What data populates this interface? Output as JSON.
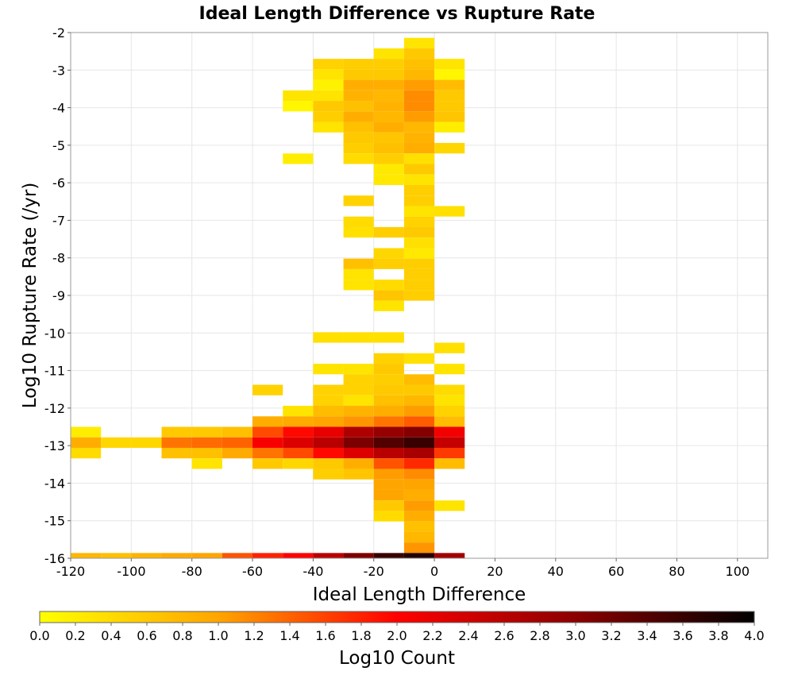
{
  "chart_data": {
    "type": "heatmap",
    "title": "Ideal Length Difference vs Rupture Rate",
    "xlabel": "Ideal Length Difference",
    "ylabel": "Log10 Rupture Rate (/yr)",
    "colorbar_label": "Log10 Count",
    "xlim": [
      -120,
      110
    ],
    "ylim": [
      -16,
      -2
    ],
    "x_ticks": [
      "-120",
      "-100",
      "-80",
      "-60",
      "-40",
      "-20",
      "0",
      "20",
      "40",
      "60",
      "80",
      "100"
    ],
    "y_ticks": [
      "-2",
      "-3",
      "-4",
      "-5",
      "-6",
      "-7",
      "-8",
      "-9",
      "-10",
      "-11",
      "-12",
      "-13",
      "-14",
      "-15",
      "-16"
    ],
    "colorbar_ticks": [
      "0.0",
      "0.2",
      "0.4",
      "0.6",
      "0.8",
      "1.0",
      "1.2",
      "1.4",
      "1.6",
      "1.8",
      "2.0",
      "2.2",
      "2.4",
      "2.6",
      "2.8",
      "3.0",
      "3.2",
      "3.4",
      "3.6",
      "3.8",
      "4.0"
    ],
    "color_range": [
      0,
      4
    ],
    "colormap": [
      "#ffff00",
      "#ffa500",
      "#ff0000",
      "#8b0000",
      "#000000"
    ],
    "bin_width_x": 10,
    "bin_height_y": 0.28,
    "grid": true,
    "cells": [
      {
        "x": -10,
        "y": -2.28,
        "v": 0.3
      },
      {
        "x": -20,
        "y": -2.56,
        "v": 0.3
      },
      {
        "x": -10,
        "y": -2.56,
        "v": 0.6
      },
      {
        "x": -40,
        "y": -2.84,
        "v": 0.5
      },
      {
        "x": -30,
        "y": -2.84,
        "v": 0.55
      },
      {
        "x": -20,
        "y": -2.84,
        "v": 0.55
      },
      {
        "x": -10,
        "y": -2.84,
        "v": 0.7
      },
      {
        "x": 0,
        "y": -2.84,
        "v": 0.3
      },
      {
        "x": -40,
        "y": -3.12,
        "v": 0.3
      },
      {
        "x": -30,
        "y": -3.12,
        "v": 0.6
      },
      {
        "x": -20,
        "y": -3.12,
        "v": 0.6
      },
      {
        "x": -10,
        "y": -3.12,
        "v": 0.8
      },
      {
        "x": 0,
        "y": -3.12,
        "v": 0.1
      },
      {
        "x": -40,
        "y": -3.4,
        "v": 0.15
      },
      {
        "x": -30,
        "y": -3.4,
        "v": 0.9
      },
      {
        "x": -20,
        "y": -3.4,
        "v": 0.9
      },
      {
        "x": -10,
        "y": -3.4,
        "v": 1.05
      },
      {
        "x": 0,
        "y": -3.4,
        "v": 0.75
      },
      {
        "x": -50,
        "y": -3.68,
        "v": 0.3
      },
      {
        "x": -40,
        "y": -3.68,
        "v": 0.3
      },
      {
        "x": -30,
        "y": -3.68,
        "v": 0.85
      },
      {
        "x": -20,
        "y": -3.68,
        "v": 0.8
      },
      {
        "x": -10,
        "y": -3.68,
        "v": 1.15
      },
      {
        "x": 0,
        "y": -3.68,
        "v": 0.6
      },
      {
        "x": -50,
        "y": -3.96,
        "v": 0.1
      },
      {
        "x": -40,
        "y": -3.96,
        "v": 0.6
      },
      {
        "x": -30,
        "y": -3.96,
        "v": 0.7
      },
      {
        "x": -20,
        "y": -3.96,
        "v": 0.85
      },
      {
        "x": -10,
        "y": -3.96,
        "v": 1.15
      },
      {
        "x": 0,
        "y": -3.96,
        "v": 0.6
      },
      {
        "x": -40,
        "y": -4.24,
        "v": 0.55
      },
      {
        "x": -30,
        "y": -4.24,
        "v": 0.9
      },
      {
        "x": -20,
        "y": -4.24,
        "v": 0.8
      },
      {
        "x": -10,
        "y": -4.24,
        "v": 1.05
      },
      {
        "x": 0,
        "y": -4.24,
        "v": 0.65
      },
      {
        "x": -40,
        "y": -4.52,
        "v": 0.3
      },
      {
        "x": -30,
        "y": -4.52,
        "v": 0.7
      },
      {
        "x": -20,
        "y": -4.52,
        "v": 0.9
      },
      {
        "x": -10,
        "y": -4.52,
        "v": 0.8
      },
      {
        "x": 0,
        "y": -4.52,
        "v": 0.2
      },
      {
        "x": -30,
        "y": -4.8,
        "v": 0.6
      },
      {
        "x": -20,
        "y": -4.8,
        "v": 0.65
      },
      {
        "x": -10,
        "y": -4.8,
        "v": 0.85
      },
      {
        "x": -30,
        "y": -5.08,
        "v": 0.55
      },
      {
        "x": -20,
        "y": -5.08,
        "v": 0.7
      },
      {
        "x": -10,
        "y": -5.08,
        "v": 0.9
      },
      {
        "x": 0,
        "y": -5.08,
        "v": 0.45
      },
      {
        "x": -50,
        "y": -5.36,
        "v": 0.2
      },
      {
        "x": -30,
        "y": -5.36,
        "v": 0.4
      },
      {
        "x": -20,
        "y": -5.36,
        "v": 0.55
      },
      {
        "x": -10,
        "y": -5.36,
        "v": 0.35
      },
      {
        "x": -20,
        "y": -5.64,
        "v": 0.25
      },
      {
        "x": -10,
        "y": -5.64,
        "v": 0.6
      },
      {
        "x": -20,
        "y": -5.92,
        "v": 0.25
      },
      {
        "x": -10,
        "y": -5.92,
        "v": 0.3
      },
      {
        "x": -10,
        "y": -6.2,
        "v": 0.55
      },
      {
        "x": -30,
        "y": -6.48,
        "v": 0.5
      },
      {
        "x": -10,
        "y": -6.48,
        "v": 0.55
      },
      {
        "x": -10,
        "y": -6.76,
        "v": 0.3
      },
      {
        "x": 0,
        "y": -6.76,
        "v": 0.35
      },
      {
        "x": -30,
        "y": -7.04,
        "v": 0.4
      },
      {
        "x": -10,
        "y": -7.04,
        "v": 0.5
      },
      {
        "x": -30,
        "y": -7.32,
        "v": 0.35
      },
      {
        "x": -20,
        "y": -7.32,
        "v": 0.55
      },
      {
        "x": -10,
        "y": -7.32,
        "v": 0.6
      },
      {
        "x": -10,
        "y": -7.6,
        "v": 0.35
      },
      {
        "x": -20,
        "y": -7.88,
        "v": 0.45
      },
      {
        "x": -10,
        "y": -7.88,
        "v": 0.25
      },
      {
        "x": -30,
        "y": -8.16,
        "v": 0.7
      },
      {
        "x": -20,
        "y": -8.16,
        "v": 0.55
      },
      {
        "x": -10,
        "y": -8.16,
        "v": 0.55
      },
      {
        "x": -30,
        "y": -8.44,
        "v": 0.3
      },
      {
        "x": -10,
        "y": -8.44,
        "v": 0.55
      },
      {
        "x": -30,
        "y": -8.72,
        "v": 0.3
      },
      {
        "x": -20,
        "y": -8.72,
        "v": 0.4
      },
      {
        "x": -10,
        "y": -8.72,
        "v": 0.55
      },
      {
        "x": -20,
        "y": -9.0,
        "v": 0.65
      },
      {
        "x": -10,
        "y": -9.0,
        "v": 0.55
      },
      {
        "x": -20,
        "y": -9.28,
        "v": 0.3
      },
      {
        "x": -40,
        "y": -10.12,
        "v": 0.35
      },
      {
        "x": -30,
        "y": -10.12,
        "v": 0.35
      },
      {
        "x": -20,
        "y": -10.12,
        "v": 0.35
      },
      {
        "x": 0,
        "y": -10.4,
        "v": 0.35
      },
      {
        "x": -20,
        "y": -10.68,
        "v": 0.5
      },
      {
        "x": -10,
        "y": -10.68,
        "v": 0.35
      },
      {
        "x": -40,
        "y": -10.96,
        "v": 0.3
      },
      {
        "x": -30,
        "y": -10.96,
        "v": 0.3
      },
      {
        "x": -20,
        "y": -10.96,
        "v": 0.6
      },
      {
        "x": 0,
        "y": -10.96,
        "v": 0.3
      },
      {
        "x": -30,
        "y": -11.24,
        "v": 0.5
      },
      {
        "x": -20,
        "y": -11.24,
        "v": 0.55
      },
      {
        "x": -10,
        "y": -11.24,
        "v": 0.75
      },
      {
        "x": -60,
        "y": -11.52,
        "v": 0.5
      },
      {
        "x": -40,
        "y": -11.52,
        "v": 0.5
      },
      {
        "x": -30,
        "y": -11.52,
        "v": 0.5
      },
      {
        "x": -20,
        "y": -11.52,
        "v": 0.6
      },
      {
        "x": -10,
        "y": -11.52,
        "v": 0.6
      },
      {
        "x": 0,
        "y": -11.52,
        "v": 0.4
      },
      {
        "x": -40,
        "y": -11.8,
        "v": 0.5
      },
      {
        "x": -30,
        "y": -11.8,
        "v": 0.3
      },
      {
        "x": -20,
        "y": -11.8,
        "v": 0.7
      },
      {
        "x": -10,
        "y": -11.8,
        "v": 0.8
      },
      {
        "x": 0,
        "y": -11.8,
        "v": 0.3
      },
      {
        "x": -50,
        "y": -12.08,
        "v": 0.3
      },
      {
        "x": -40,
        "y": -12.08,
        "v": 0.75
      },
      {
        "x": -30,
        "y": -12.08,
        "v": 0.85
      },
      {
        "x": -20,
        "y": -12.08,
        "v": 0.9
      },
      {
        "x": -10,
        "y": -12.08,
        "v": 1.05
      },
      {
        "x": 0,
        "y": -12.08,
        "v": 0.5
      },
      {
        "x": -60,
        "y": -12.36,
        "v": 0.9
      },
      {
        "x": -50,
        "y": -12.36,
        "v": 0.95
      },
      {
        "x": -40,
        "y": -12.36,
        "v": 1.0
      },
      {
        "x": -30,
        "y": -12.36,
        "v": 1.1
      },
      {
        "x": -20,
        "y": -12.36,
        "v": 1.3
      },
      {
        "x": -10,
        "y": -12.36,
        "v": 1.45
      },
      {
        "x": 0,
        "y": -12.36,
        "v": 0.75
      },
      {
        "x": -120,
        "y": -12.64,
        "v": 0.2
      },
      {
        "x": -90,
        "y": -12.64,
        "v": 0.6
      },
      {
        "x": -80,
        "y": -12.64,
        "v": 0.6
      },
      {
        "x": -70,
        "y": -12.64,
        "v": 0.7
      },
      {
        "x": -60,
        "y": -12.64,
        "v": 1.55
      },
      {
        "x": -50,
        "y": -12.64,
        "v": 1.95
      },
      {
        "x": -40,
        "y": -12.64,
        "v": 2.2
      },
      {
        "x": -30,
        "y": -12.64,
        "v": 2.7
      },
      {
        "x": -20,
        "y": -12.64,
        "v": 2.9
      },
      {
        "x": -10,
        "y": -12.64,
        "v": 3.05
      },
      {
        "x": 0,
        "y": -12.64,
        "v": 2.1
      },
      {
        "x": -120,
        "y": -12.92,
        "v": 0.9
      },
      {
        "x": -110,
        "y": -12.92,
        "v": 0.45
      },
      {
        "x": -100,
        "y": -12.92,
        "v": 0.45
      },
      {
        "x": -90,
        "y": -12.92,
        "v": 1.3
      },
      {
        "x": -80,
        "y": -12.92,
        "v": 1.35
      },
      {
        "x": -70,
        "y": -12.92,
        "v": 1.4
      },
      {
        "x": -60,
        "y": -12.92,
        "v": 2.05
      },
      {
        "x": -50,
        "y": -12.92,
        "v": 2.3
      },
      {
        "x": -40,
        "y": -12.92,
        "v": 2.6
      },
      {
        "x": -30,
        "y": -12.92,
        "v": 3.1
      },
      {
        "x": -20,
        "y": -12.92,
        "v": 3.4
      },
      {
        "x": -10,
        "y": -12.92,
        "v": 3.6
      },
      {
        "x": 0,
        "y": -12.92,
        "v": 2.5
      },
      {
        "x": -120,
        "y": -13.2,
        "v": 0.4
      },
      {
        "x": -90,
        "y": -13.2,
        "v": 0.7
      },
      {
        "x": -80,
        "y": -13.2,
        "v": 0.7
      },
      {
        "x": -70,
        "y": -13.2,
        "v": 0.95
      },
      {
        "x": -60,
        "y": -13.2,
        "v": 1.3
      },
      {
        "x": -50,
        "y": -13.2,
        "v": 1.55
      },
      {
        "x": -40,
        "y": -13.2,
        "v": 1.95
      },
      {
        "x": -30,
        "y": -13.2,
        "v": 2.3
      },
      {
        "x": -20,
        "y": -13.2,
        "v": 2.6
      },
      {
        "x": -10,
        "y": -13.2,
        "v": 2.75
      },
      {
        "x": 0,
        "y": -13.2,
        "v": 1.65
      },
      {
        "x": -80,
        "y": -13.48,
        "v": 0.3
      },
      {
        "x": -60,
        "y": -13.48,
        "v": 0.6
      },
      {
        "x": -50,
        "y": -13.48,
        "v": 0.45
      },
      {
        "x": -40,
        "y": -13.48,
        "v": 0.6
      },
      {
        "x": -30,
        "y": -13.48,
        "v": 0.9
      },
      {
        "x": -20,
        "y": -13.48,
        "v": 1.5
      },
      {
        "x": -10,
        "y": -13.48,
        "v": 1.75
      },
      {
        "x": 0,
        "y": -13.48,
        "v": 0.75
      },
      {
        "x": -40,
        "y": -13.76,
        "v": 0.55
      },
      {
        "x": -30,
        "y": -13.76,
        "v": 0.65
      },
      {
        "x": -20,
        "y": -13.76,
        "v": 1.05
      },
      {
        "x": -10,
        "y": -13.76,
        "v": 1.15
      },
      {
        "x": -20,
        "y": -14.04,
        "v": 1.0
      },
      {
        "x": -10,
        "y": -14.04,
        "v": 1.0
      },
      {
        "x": -20,
        "y": -14.32,
        "v": 1.0
      },
      {
        "x": -10,
        "y": -14.32,
        "v": 0.9
      },
      {
        "x": -20,
        "y": -14.6,
        "v": 0.6
      },
      {
        "x": -10,
        "y": -14.6,
        "v": 1.05
      },
      {
        "x": 0,
        "y": -14.6,
        "v": 0.3
      },
      {
        "x": -20,
        "y": -14.88,
        "v": 0.4
      },
      {
        "x": -10,
        "y": -14.88,
        "v": 0.9
      },
      {
        "x": -10,
        "y": -15.16,
        "v": 0.7
      },
      {
        "x": -10,
        "y": -15.44,
        "v": 0.8
      },
      {
        "x": -10,
        "y": -15.72,
        "v": 1.1
      },
      {
        "x": -120,
        "y": -16.0,
        "v": 0.8
      },
      {
        "x": -110,
        "y": -16.0,
        "v": 0.7
      },
      {
        "x": -100,
        "y": -16.0,
        "v": 0.85
      },
      {
        "x": -90,
        "y": -16.0,
        "v": 0.95
      },
      {
        "x": -80,
        "y": -16.0,
        "v": 1.0
      },
      {
        "x": -70,
        "y": -16.0,
        "v": 1.5
      },
      {
        "x": -60,
        "y": -16.0,
        "v": 1.8
      },
      {
        "x": -50,
        "y": -16.0,
        "v": 2.0
      },
      {
        "x": -40,
        "y": -16.0,
        "v": 2.6
      },
      {
        "x": -30,
        "y": -16.0,
        "v": 3.1
      },
      {
        "x": -20,
        "y": -16.0,
        "v": 3.6
      },
      {
        "x": -10,
        "y": -16.0,
        "v": 3.75
      },
      {
        "x": 0,
        "y": -16.0,
        "v": 2.8
      }
    ]
  }
}
